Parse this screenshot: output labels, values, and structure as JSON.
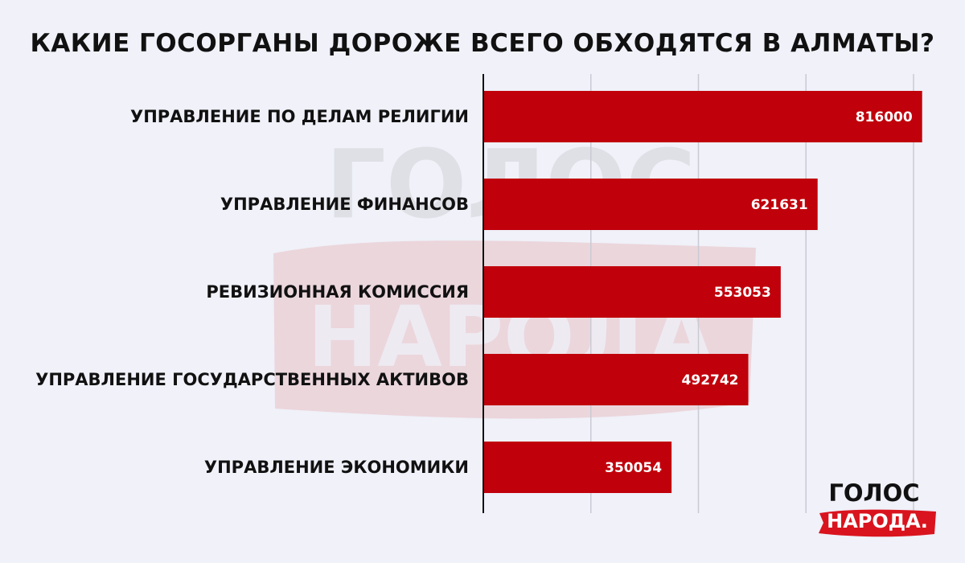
{
  "chart_data": {
    "type": "bar",
    "orientation": "horizontal",
    "title": "КАКИЕ ГОСОРГАНЫ ДОРОЖЕ ВСЕГО ОБХОДЯТСЯ В АЛМАТЫ?",
    "categories": [
      "УПРАВЛЕНИЕ ПО ДЕЛАМ РЕЛИГИИ",
      "УПРАВЛЕНИЕ ФИНАНСОВ",
      "РЕВИЗИОННАЯ КОМИССИЯ",
      "УПРАВЛЕНИЕ ГОСУДАРСТВЕННЫХ АКТИВОВ",
      "УПРАВЛЕНИЕ ЭКОНОМИКИ"
    ],
    "values": [
      816000,
      621631,
      553053,
      492742,
      350054
    ],
    "value_labels": [
      "816000",
      "621631",
      "553053",
      "492742",
      "350054"
    ],
    "xlim": [
      0,
      800000
    ],
    "grid": true,
    "legend": "none",
    "bar_color": "#c0000b"
  },
  "watermark": {
    "line1": "ГОЛОС",
    "line2": "НАРОДА"
  },
  "logo": {
    "line1": "ГОЛОС",
    "line2": "НАРОДА.",
    "accent": "#d9141e"
  }
}
